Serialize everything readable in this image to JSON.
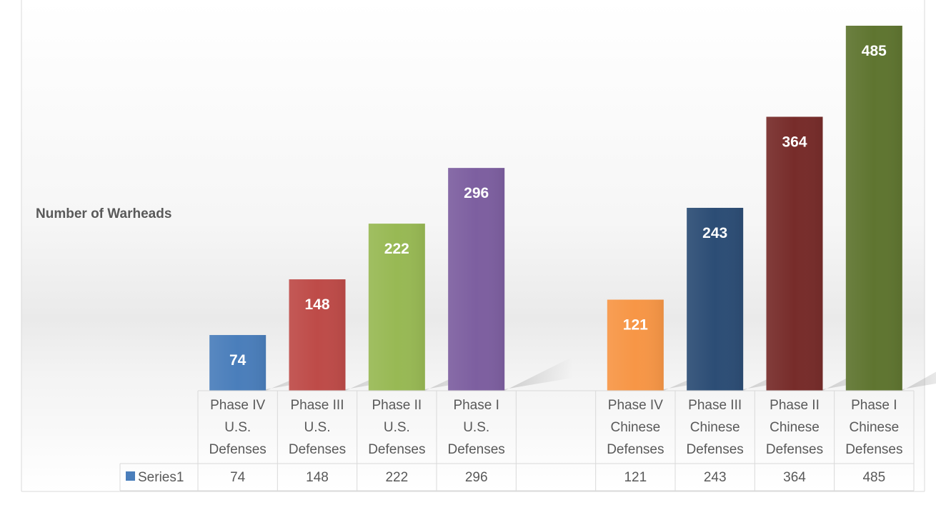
{
  "chart_data": {
    "type": "bar",
    "title": "",
    "ylabel": "Number of Warheads",
    "xlabel": "",
    "ylim": [
      0,
      500
    ],
    "grid": false,
    "legend": "data-table",
    "categories": [
      [
        "Phase IV",
        "U.S.",
        "Defenses"
      ],
      [
        "Phase III",
        "U.S.",
        "Defenses"
      ],
      [
        "Phase II",
        "U.S.",
        "Defenses"
      ],
      [
        "Phase I",
        "U.S.",
        "Defenses"
      ],
      [
        "",
        "",
        ""
      ],
      [
        "Phase IV",
        "Chinese",
        "Defenses"
      ],
      [
        "Phase III",
        "Chinese",
        "Defenses"
      ],
      [
        "Phase II",
        "Chinese",
        "Defenses"
      ],
      [
        "Phase I",
        "Chinese",
        "Defenses"
      ]
    ],
    "series": [
      {
        "name": "Series1",
        "values": [
          74,
          148,
          222,
          296,
          null,
          121,
          243,
          364,
          485
        ],
        "value_labels": [
          "74",
          "148",
          "222",
          "296",
          "",
          "121",
          "243",
          "364",
          "485"
        ]
      }
    ],
    "bar_colors": [
      "#4a7ebb",
      "#be4b48",
      "#98b954",
      "#7d5fa0",
      "",
      "#f79646",
      "#2c4d75",
      "#772c2a",
      "#5f7530"
    ],
    "legend_color": "#4a7ebb"
  }
}
